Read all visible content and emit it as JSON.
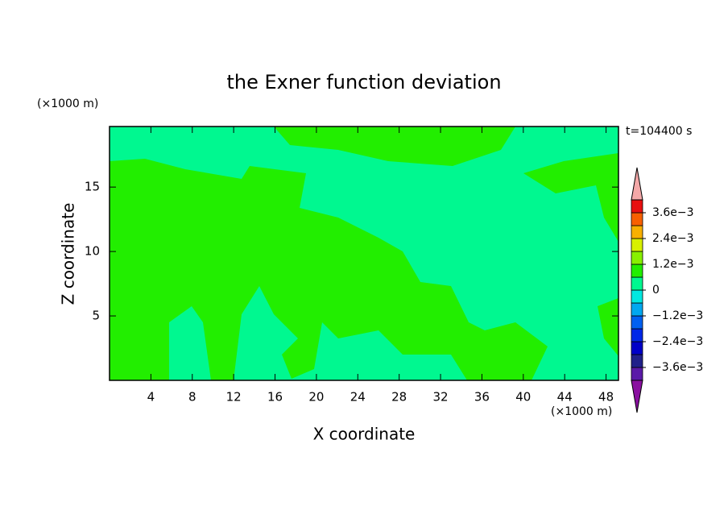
{
  "chart_data": {
    "type": "contour",
    "title": "the Exner function deviation",
    "x_label": "X coordinate",
    "y_label": "Z coordinate",
    "x_unit": "(×1000 m)",
    "y_unit": "(×1000 m)",
    "time_label": "t=104400 s",
    "xlim": [
      0,
      49.2
    ],
    "ylim": [
      0,
      19.7
    ],
    "xticks": [
      4,
      8,
      12,
      16,
      20,
      24,
      28,
      32,
      36,
      40,
      44,
      48
    ],
    "yticks": [
      5,
      10,
      15
    ],
    "colorbar": {
      "levels": [
        -0.0042,
        -0.0036,
        -0.003,
        -0.0024,
        -0.0018,
        -0.0012,
        -0.0006,
        0,
        0.0006,
        0.0012,
        0.0018,
        0.0024,
        0.003,
        0.0036,
        0.0042
      ],
      "colors": [
        "#5a1aa8",
        "#20208a",
        "#0000c8",
        "#0028e8",
        "#0060f0",
        "#00a8f0",
        "#00e8e0",
        "#00f890",
        "#22ee00",
        "#88f000",
        "#d8f000",
        "#f8b000",
        "#f86000",
        "#e81010"
      ],
      "extend_colors": [
        "#8a10a0",
        "#f4a8a8"
      ],
      "ticks": [
        {
          "value": -0.0036,
          "label": "−3.6e−3"
        },
        {
          "value": -0.0024,
          "label": "−2.4e−3"
        },
        {
          "value": -0.0012,
          "label": "−1.2e−3"
        },
        0,
        {
          "value": 0.0012,
          "label": "1.2e−3"
        },
        {
          "value": 0.0024,
          "label": "2.4e−3"
        },
        {
          "value": 0.0036,
          "label": "3.6e−3"
        }
      ]
    }
  }
}
